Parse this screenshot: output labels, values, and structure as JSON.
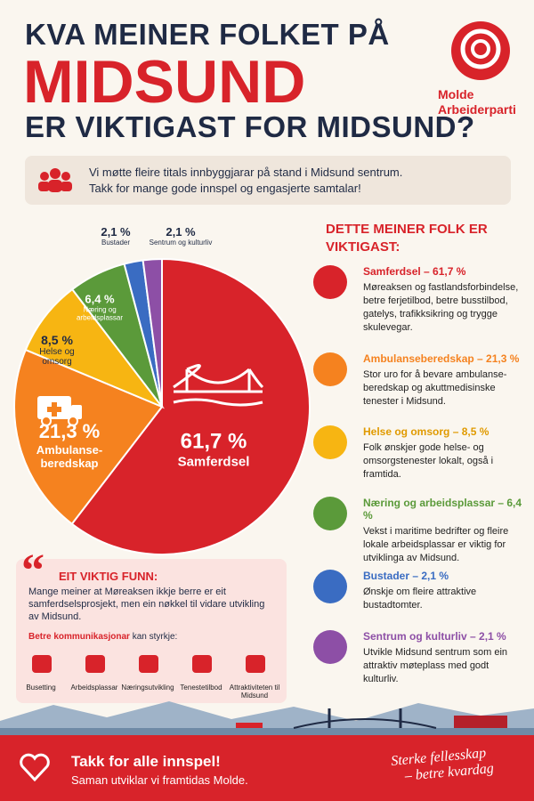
{
  "header": {
    "line1": "KVA MEINER FOLKET PÅ",
    "line2": "MIDSUND",
    "line3": "ER VIKTIGAST FOR MIDSUND?",
    "logo": "Molde Arbeiderparti"
  },
  "intro": {
    "line1": "Vi møtte fleire titals innbyggjarar på stand i Midsund sentrum.",
    "line2": "Takk for mange gode innspel og engasjerte samtalar!"
  },
  "chart_data": {
    "type": "pie",
    "categories": [
      "Samferdsel",
      "Ambulanse-beredskap",
      "Helse og omsorg",
      "Næring og arbeidsplassar",
      "Bustader",
      "Sentrum og kulturliv"
    ],
    "values": [
      61.7,
      21.3,
      8.5,
      6.4,
      2.1,
      2.1
    ],
    "value_labels": [
      "61,7 %",
      "21,3 %",
      "8,5 %",
      "6,4 %",
      "2,1 %",
      "2,1 %"
    ],
    "colors": [
      "#d8232a",
      "#f5821f",
      "#f7b512",
      "#5b9a3a",
      "#3a6cc2",
      "#8d4fa6"
    ]
  },
  "priorities": {
    "title": "DETTE MEINER FOLK ER VIKTIGAST:",
    "items": [
      {
        "title": "Samferdsel – 61,7 %",
        "text": "Møreaksen og fastlandsforbindelse, betre ferjetilbod, betre busstilbod, gatelys, trafikksikring og trygge skulevegar."
      },
      {
        "title": "Ambulanseberedskap – 21,3 %",
        "text": "Stor uro for å bevare ambulanse-beredskap og akuttmedisinske tenester i Midsund."
      },
      {
        "title": "Helse og omsorg – 8,5 %",
        "text": "Folk ønskjer gode helse- og omsorgstenester lokalt, også i framtida."
      },
      {
        "title": "Næring og arbeidsplassar – 6,4 %",
        "text": "Vekst i maritime bedrifter og fleire lokale arbeidsplassar er viktig for utviklinga av Midsund."
      },
      {
        "title": "Bustader – 2,1 %",
        "text": "Ønskje om fleire attraktive bustadtomter."
      },
      {
        "title": "Sentrum og kulturliv – 2,1 %",
        "text": "Utvikle Midsund sentrum som ein attraktiv møteplass med godt kulturliv."
      }
    ]
  },
  "finding": {
    "title": "EIT VIKTIG FUNN:",
    "text": "Mange meiner at Møreaksen ikkje berre er eit samferdselsprosjekt, men ein nøkkel til vidare utvikling av Midsund.",
    "lead_bold": "Betre kommunikasjonar",
    "lead_rest": "kan styrkje:",
    "benefits": [
      "Busetting",
      "Arbeidsplassar",
      "Næringsutvikling",
      "Tenestetilbod",
      "Attraktiviteten til Midsund"
    ]
  },
  "footer": {
    "title": "Takk for alle innspel!",
    "subtitle": "Saman utviklar vi framtidas Molde.",
    "slogan1": "Sterke fellesskap",
    "slogan2": "– betre kvardag"
  }
}
